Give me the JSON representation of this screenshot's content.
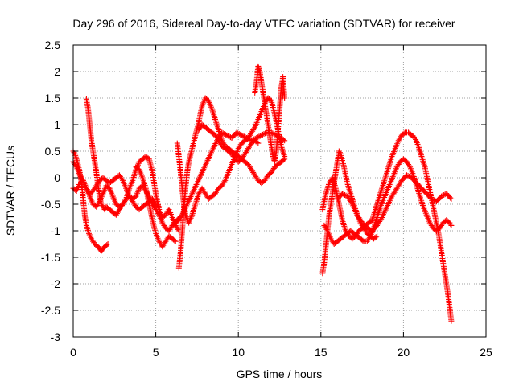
{
  "chart_data": {
    "type": "scatter",
    "title": "Day 296 of 2016, Sidereal Day-to-day VTEC variation (SDTVAR) for receiver",
    "xlabel": "GPS time / hours",
    "ylabel": "SDTVAR / TECUs",
    "xlim": [
      0,
      25
    ],
    "ylim": [
      -3,
      2.5
    ],
    "x_ticks": [
      0,
      5,
      10,
      15,
      20,
      25
    ],
    "x_tick_labels": [
      "0",
      "5",
      "10",
      "15",
      "20",
      "25"
    ],
    "y_ticks": [
      -3,
      -2.5,
      -2,
      -1.5,
      -1,
      -0.5,
      0,
      0.5,
      1,
      1.5,
      2,
      2.5
    ],
    "y_tick_labels": [
      "-3",
      "-2.5",
      "-2",
      "-1.5",
      "-1",
      "-0.5",
      "0",
      "0.5",
      "1",
      "1.5",
      "2",
      "2.5"
    ],
    "grid": true,
    "marker": "+",
    "color": "#ff0000",
    "series": [
      {
        "x": [
          0.0,
          0.1,
          0.25,
          0.4,
          0.5,
          0.6,
          0.7,
          0.8,
          0.95,
          1.1,
          1.3,
          1.5,
          1.7,
          1.9,
          2.1
        ],
        "y": [
          0.5,
          0.45,
          0.3,
          0.1,
          -0.1,
          -0.4,
          -0.7,
          -0.9,
          -1.05,
          -1.15,
          -1.25,
          -1.3,
          -1.38,
          -1.3,
          -1.25
        ]
      },
      {
        "x": [
          0.0,
          0.2,
          0.4,
          0.6,
          0.8,
          1.0,
          1.2,
          1.4,
          1.6,
          1.8,
          2.0,
          2.2,
          2.4,
          2.6,
          2.8,
          3.0,
          3.2,
          3.4,
          3.6,
          3.8,
          4.0,
          4.2,
          4.4,
          4.6,
          4.8,
          5.0,
          5.2,
          5.4,
          5.6,
          5.8,
          6.0,
          6.2,
          6.4
        ],
        "y": [
          0.3,
          0.2,
          0.05,
          -0.05,
          -0.2,
          -0.3,
          -0.25,
          -0.15,
          -0.05,
          0.0,
          -0.05,
          -0.1,
          -0.05,
          0.0,
          0.05,
          -0.05,
          -0.2,
          -0.35,
          -0.4,
          -0.35,
          -0.2,
          -0.15,
          -0.25,
          -0.35,
          -0.5,
          -0.6,
          -0.7,
          -0.85,
          -0.95,
          -1.0,
          -0.9,
          -0.85,
          -0.8
        ]
      },
      {
        "x": [
          0.0,
          0.2,
          0.4,
          0.6,
          0.8,
          1.0,
          1.2,
          1.4,
          1.6,
          1.8,
          2.0,
          2.2,
          2.4,
          2.6,
          2.8,
          3.0,
          3.2,
          3.4,
          3.6,
          3.8,
          4.0,
          4.2,
          4.4,
          4.6,
          4.8,
          5.0,
          5.2,
          5.4,
          5.6,
          5.8,
          6.0,
          6.2,
          6.4
        ],
        "y": [
          -0.2,
          -0.25,
          -0.1,
          -0.05,
          -0.2,
          -0.35,
          -0.5,
          -0.55,
          -0.45,
          -0.3,
          -0.15,
          -0.2,
          -0.35,
          -0.5,
          -0.55,
          -0.5,
          -0.4,
          -0.2,
          -0.05,
          0.15,
          0.3,
          0.35,
          0.4,
          0.35,
          0.1,
          -0.3,
          -0.6,
          -0.75,
          -0.7,
          -0.6,
          -0.75,
          -0.9,
          -1.0
        ]
      },
      {
        "x": [
          0.8,
          0.9,
          1.0,
          1.1,
          1.2,
          1.3,
          1.4,
          1.5,
          1.6,
          1.7,
          1.8,
          1.9,
          2.0,
          2.2,
          2.4,
          2.6,
          2.8,
          3.0,
          3.2,
          3.4,
          3.6,
          3.8,
          4.0,
          4.2,
          4.4,
          4.6,
          4.8,
          5.0,
          5.2
        ],
        "y": [
          1.48,
          1.3,
          1.0,
          0.7,
          0.5,
          0.3,
          0.1,
          -0.15,
          -0.35,
          -0.5,
          -0.55,
          -0.6,
          -0.55,
          -0.6,
          -0.65,
          -0.7,
          -0.6,
          -0.5,
          -0.4,
          -0.35,
          -0.45,
          -0.55,
          -0.6,
          -0.55,
          -0.5,
          -0.45,
          -0.4,
          -0.5,
          -0.55
        ]
      },
      {
        "x": [
          3.8,
          4.0,
          4.2,
          4.4,
          4.6,
          4.8,
          5.0,
          5.2,
          5.4,
          5.6,
          5.8,
          6.0,
          6.2
        ],
        "y": [
          0.2,
          0.15,
          0.0,
          -0.2,
          -0.5,
          -0.8,
          -1.05,
          -1.2,
          -1.3,
          -1.2,
          -1.1,
          -1.15,
          -1.2
        ]
      },
      {
        "x": [
          6.4,
          6.5,
          6.6,
          6.7,
          6.8,
          6.9,
          7.0,
          7.2,
          7.4,
          7.6,
          7.8,
          8.0,
          8.2,
          8.4,
          8.6,
          8.8,
          9.0,
          9.2,
          9.4,
          9.6,
          9.8,
          10.0,
          10.2,
          10.4,
          10.6,
          10.8,
          11.0,
          11.2,
          11.4,
          11.6,
          11.8,
          12.0,
          12.2,
          12.4,
          12.6,
          12.8
        ],
        "y": [
          -1.7,
          -1.4,
          -1.0,
          -0.6,
          -0.2,
          0.1,
          0.3,
          0.55,
          0.8,
          1.05,
          1.35,
          1.5,
          1.45,
          1.3,
          1.1,
          0.9,
          0.7,
          0.6,
          0.55,
          0.5,
          0.45,
          0.4,
          0.35,
          0.3,
          0.25,
          0.15,
          0.05,
          -0.05,
          -0.1,
          -0.05,
          0.05,
          0.1,
          0.2,
          0.25,
          0.3,
          0.35
        ]
      },
      {
        "x": [
          6.3,
          6.4,
          6.5,
          6.6,
          6.7,
          6.8,
          7.0,
          7.2,
          7.4,
          7.6,
          7.8,
          8.0,
          8.2,
          8.4,
          8.6,
          8.8,
          9.0,
          9.2,
          9.4,
          9.6,
          9.8,
          10.0,
          10.2,
          10.4,
          10.6,
          10.8,
          11.0,
          11.2,
          11.4,
          11.6,
          11.8,
          12.0,
          12.2,
          12.4,
          12.6,
          12.8
        ],
        "y": [
          0.65,
          0.4,
          0.1,
          -0.2,
          -0.5,
          -0.7,
          -0.85,
          -0.7,
          -0.5,
          -0.3,
          -0.2,
          -0.3,
          -0.4,
          -0.35,
          -0.3,
          -0.2,
          -0.15,
          -0.05,
          0.1,
          0.25,
          0.4,
          0.55,
          0.65,
          0.7,
          0.75,
          0.85,
          0.95,
          1.1,
          1.25,
          1.4,
          1.5,
          1.45,
          1.2,
          0.9,
          0.6,
          0.4
        ]
      },
      {
        "x": [
          6.0,
          6.3,
          6.6,
          6.9,
          7.2,
          7.5,
          7.8,
          8.1,
          8.4,
          8.7,
          9.0,
          9.3,
          9.6,
          9.9,
          10.2,
          10.5,
          10.8,
          11.1,
          11.4,
          11.7,
          12.0,
          12.3,
          12.6,
          12.8
        ],
        "y": [
          -0.9,
          -0.8,
          -0.7,
          -0.5,
          -0.3,
          -0.1,
          0.1,
          0.3,
          0.5,
          0.7,
          0.85,
          0.8,
          0.75,
          0.85,
          0.8,
          0.75,
          0.7,
          0.75,
          0.8,
          0.85,
          0.85,
          0.8,
          0.75,
          0.7
        ]
      },
      {
        "x": [
          7.6,
          7.8,
          8.0,
          8.2,
          8.4,
          8.6,
          8.8,
          9.0,
          9.2,
          9.4,
          9.6,
          9.8,
          10.0,
          10.2,
          10.4,
          10.6,
          10.8,
          11.0,
          11.2
        ],
        "y": [
          0.9,
          1.0,
          0.95,
          0.9,
          0.85,
          0.8,
          0.7,
          0.6,
          0.55,
          0.5,
          0.45,
          0.35,
          0.3,
          0.35,
          0.45,
          0.55,
          0.65,
          0.7,
          0.65
        ]
      },
      {
        "x": [
          11.0,
          11.1,
          11.2,
          11.3,
          11.4,
          11.5,
          11.6,
          11.7,
          11.8,
          11.9,
          12.0,
          12.1,
          12.2,
          12.3,
          12.4,
          12.5,
          12.6,
          12.7,
          12.8
        ],
        "y": [
          1.6,
          1.8,
          2.1,
          2.0,
          1.8,
          1.6,
          1.4,
          1.2,
          1.0,
          0.8,
          0.6,
          0.4,
          0.3,
          0.5,
          0.9,
          1.3,
          1.7,
          1.9,
          1.5
        ]
      },
      {
        "x": [
          15.1,
          15.2,
          15.3,
          15.4,
          15.5,
          15.6,
          15.7,
          15.8,
          15.9,
          16.0,
          16.1,
          16.2,
          16.4,
          16.6,
          16.8,
          17.0,
          17.2,
          17.4,
          17.6,
          17.8,
          18.0,
          18.2,
          18.4
        ],
        "y": [
          -1.8,
          -1.6,
          -1.3,
          -1.0,
          -0.7,
          -0.5,
          -0.3,
          -0.1,
          0.1,
          0.3,
          0.5,
          0.45,
          0.2,
          -0.1,
          -0.3,
          -0.5,
          -0.7,
          -0.85,
          -0.95,
          -1.05,
          -1.1,
          -1.15,
          -1.1
        ]
      },
      {
        "x": [
          15.1,
          15.3,
          15.5,
          15.7,
          15.9,
          16.1,
          16.3,
          16.5,
          16.7,
          16.9,
          17.1,
          17.3,
          17.5,
          17.7,
          17.9,
          18.1,
          18.3,
          18.5,
          18.7,
          18.9,
          19.1,
          19.3,
          19.5,
          19.7,
          19.9,
          20.1,
          20.3,
          20.5,
          20.7,
          20.9,
          21.1,
          21.3,
          21.5,
          21.7,
          21.9,
          22.1,
          22.3,
          22.5,
          22.7,
          22.9
        ],
        "y": [
          -0.6,
          -0.3,
          -0.1,
          0.0,
          -0.2,
          -0.5,
          -0.8,
          -1.0,
          -1.1,
          -1.15,
          -1.1,
          -1.0,
          -0.95,
          -0.9,
          -0.85,
          -0.8,
          -0.6,
          -0.4,
          -0.2,
          0.0,
          0.2,
          0.4,
          0.55,
          0.7,
          0.8,
          0.85,
          0.85,
          0.8,
          0.75,
          0.6,
          0.4,
          0.2,
          -0.1,
          -0.4,
          -0.7,
          -1.0,
          -1.4,
          -1.8,
          -2.2,
          -2.7
        ]
      },
      {
        "x": [
          15.2,
          15.4,
          15.6,
          15.8,
          16.0,
          16.2,
          16.4,
          16.6,
          16.8,
          17.0,
          17.2,
          17.4,
          17.6,
          17.8,
          18.0,
          18.2,
          18.4,
          18.6,
          18.8,
          19.0,
          19.2,
          19.4,
          19.6,
          19.8,
          20.0,
          20.2,
          20.4,
          20.6,
          20.8,
          21.0,
          21.2,
          21.4,
          21.6,
          21.8,
          22.0,
          22.2,
          22.4,
          22.6,
          22.8,
          22.9
        ],
        "y": [
          -0.9,
          -1.0,
          -1.15,
          -1.25,
          -1.2,
          -1.15,
          -1.1,
          -1.05,
          -1.0,
          -1.05,
          -1.1,
          -1.15,
          -1.2,
          -1.2,
          -1.1,
          -0.95,
          -0.75,
          -0.55,
          -0.4,
          -0.25,
          -0.1,
          0.05,
          0.2,
          0.3,
          0.35,
          0.3,
          0.2,
          0.05,
          -0.15,
          -0.35,
          -0.55,
          -0.7,
          -0.85,
          -0.95,
          -1.0,
          -0.95,
          -0.85,
          -0.8,
          -0.85,
          -0.9
        ]
      },
      {
        "x": [
          16.0,
          16.3,
          16.6,
          16.9,
          17.2,
          17.5,
          17.8,
          18.1,
          18.4,
          18.7,
          19.0,
          19.3,
          19.6,
          19.9,
          20.2,
          20.5,
          20.8,
          21.1,
          21.4,
          21.7,
          22.0,
          22.3,
          22.6,
          22.9
        ],
        "y": [
          -0.4,
          -0.3,
          -0.35,
          -0.5,
          -0.7,
          -0.85,
          -0.95,
          -1.0,
          -0.9,
          -0.75,
          -0.55,
          -0.35,
          -0.2,
          -0.05,
          0.05,
          0.0,
          -0.1,
          -0.2,
          -0.3,
          -0.4,
          -0.45,
          -0.35,
          -0.3,
          -0.4
        ]
      }
    ]
  }
}
